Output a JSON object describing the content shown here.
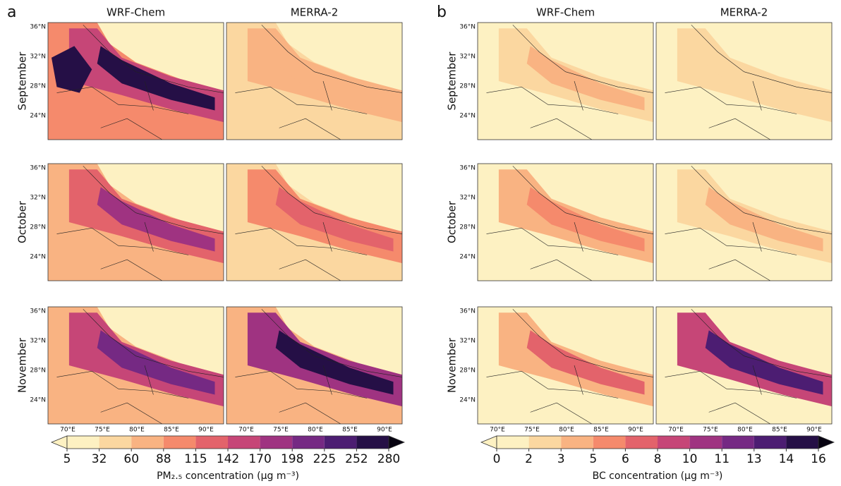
{
  "panels": [
    {
      "letter": "a",
      "columns": [
        "WRF-Chem",
        "MERRA-2"
      ],
      "rows": [
        "September",
        "October",
        "November"
      ],
      "lat_ticks": [
        "36°N",
        "32°N",
        "28°N",
        "24°N"
      ],
      "lon_ticks": [
        "70°E",
        "75°E",
        "80°E",
        "85°E",
        "90°E"
      ],
      "colorbar": {
        "ticks": [
          5,
          32,
          60,
          88,
          115,
          142,
          170,
          198,
          225,
          252,
          280
        ],
        "colors": [
          "#fdf1c2",
          "#fbd7a0",
          "#f9b382",
          "#f58a6c",
          "#e3636b",
          "#c64677",
          "#9f3381",
          "#752983",
          "#4c1d72",
          "#250f46",
          "#070311"
        ],
        "label": "PM₂.₅ concentration (μg m⁻³)"
      }
    },
    {
      "letter": "b",
      "columns": [
        "WRF-Chem",
        "MERRA-2"
      ],
      "rows": [
        "September",
        "October",
        "November"
      ],
      "lat_ticks": [
        "36°N",
        "32°N",
        "28°N",
        "24°N"
      ],
      "lon_ticks": [
        "70°E",
        "75°E",
        "80°E",
        "85°E",
        "90°E"
      ],
      "colorbar": {
        "ticks": [
          0,
          2,
          3,
          5,
          6,
          8,
          10,
          11,
          13,
          14,
          16
        ],
        "colors": [
          "#fdf1c2",
          "#fbd7a0",
          "#f9b382",
          "#f58a6c",
          "#e3636b",
          "#c64677",
          "#9f3381",
          "#752983",
          "#4c1d72",
          "#250f46",
          "#070311"
        ],
        "label": "BC concentration (μg m⁻³)"
      }
    }
  ]
}
